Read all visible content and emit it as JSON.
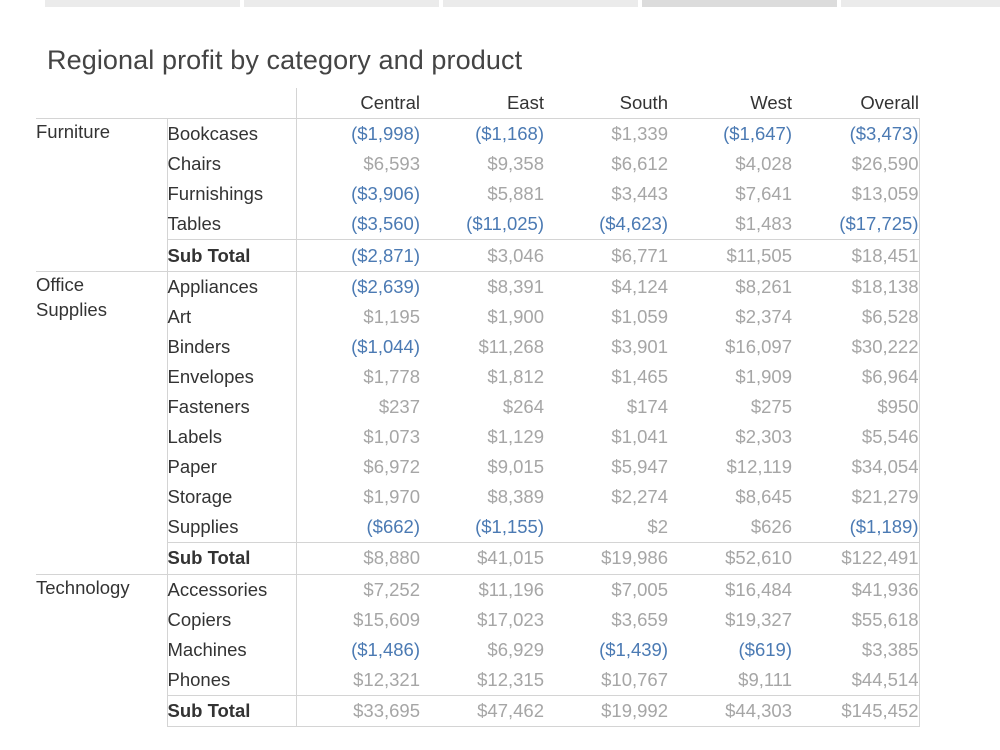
{
  "tabs": [
    "",
    "",
    "",
    "",
    ""
  ],
  "chart_data": {
    "type": "table",
    "title": "Regional profit by category and product",
    "columns": [
      "Central",
      "East",
      "South",
      "West",
      "Overall"
    ],
    "groups": [
      {
        "category": "Furniture",
        "rows": [
          {
            "label": "Bookcases",
            "values": [
              "($1,998)",
              "($1,168)",
              "$1,339",
              "($1,647)",
              "($3,473)"
            ]
          },
          {
            "label": "Chairs",
            "values": [
              "$6,593",
              "$9,358",
              "$6,612",
              "$4,028",
              "$26,590"
            ]
          },
          {
            "label": "Furnishings",
            "values": [
              "($3,906)",
              "$5,881",
              "$3,443",
              "$7,641",
              "$13,059"
            ]
          },
          {
            "label": "Tables",
            "values": [
              "($3,560)",
              "($11,025)",
              "($4,623)",
              "$1,483",
              "($17,725)"
            ]
          },
          {
            "label": "Sub Total",
            "total": true,
            "values": [
              "($2,871)",
              "$3,046",
              "$6,771",
              "$11,505",
              "$18,451"
            ]
          }
        ]
      },
      {
        "category": "Office Supplies",
        "rows": [
          {
            "label": "Appliances",
            "values": [
              "($2,639)",
              "$8,391",
              "$4,124",
              "$8,261",
              "$18,138"
            ]
          },
          {
            "label": "Art",
            "values": [
              "$1,195",
              "$1,900",
              "$1,059",
              "$2,374",
              "$6,528"
            ]
          },
          {
            "label": "Binders",
            "values": [
              "($1,044)",
              "$11,268",
              "$3,901",
              "$16,097",
              "$30,222"
            ]
          },
          {
            "label": "Envelopes",
            "values": [
              "$1,778",
              "$1,812",
              "$1,465",
              "$1,909",
              "$6,964"
            ]
          },
          {
            "label": "Fasteners",
            "values": [
              "$237",
              "$264",
              "$174",
              "$275",
              "$950"
            ]
          },
          {
            "label": "Labels",
            "values": [
              "$1,073",
              "$1,129",
              "$1,041",
              "$2,303",
              "$5,546"
            ]
          },
          {
            "label": "Paper",
            "values": [
              "$6,972",
              "$9,015",
              "$5,947",
              "$12,119",
              "$34,054"
            ]
          },
          {
            "label": "Storage",
            "values": [
              "$1,970",
              "$8,389",
              "$2,274",
              "$8,645",
              "$21,279"
            ]
          },
          {
            "label": "Supplies",
            "values": [
              "($662)",
              "($1,155)",
              "$2",
              "$626",
              "($1,189)"
            ]
          },
          {
            "label": "Sub Total",
            "total": true,
            "values": [
              "$8,880",
              "$41,015",
              "$19,986",
              "$52,610",
              "$122,491"
            ]
          }
        ]
      },
      {
        "category": "Technology",
        "rows": [
          {
            "label": "Accessories",
            "values": [
              "$7,252",
              "$11,196",
              "$7,005",
              "$16,484",
              "$41,936"
            ]
          },
          {
            "label": "Copiers",
            "values": [
              "$15,609",
              "$17,023",
              "$3,659",
              "$19,327",
              "$55,618"
            ]
          },
          {
            "label": "Machines",
            "values": [
              "($1,486)",
              "$6,929",
              "($1,439)",
              "($619)",
              "$3,385"
            ]
          },
          {
            "label": "Phones",
            "values": [
              "$12,321",
              "$12,315",
              "$10,767",
              "$9,111",
              "$44,514"
            ]
          },
          {
            "label": "Sub Total",
            "total": true,
            "values": [
              "$33,695",
              "$47,462",
              "$19,992",
              "$44,303",
              "$145,452"
            ]
          }
        ]
      }
    ],
    "colors": {
      "positive": "#a6a6a6",
      "negative": "#4b7ab3",
      "label": "#333333"
    }
  }
}
